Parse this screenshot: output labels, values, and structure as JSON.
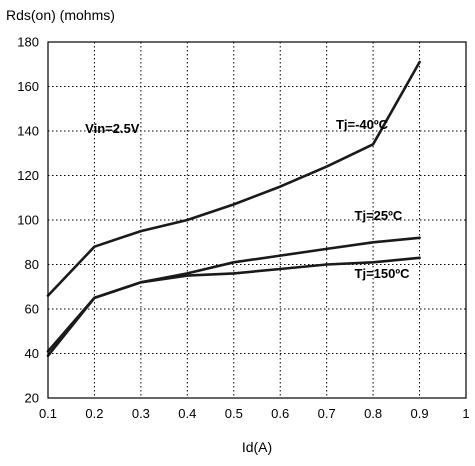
{
  "chart_data": {
    "type": "line",
    "ylabel": "Rds(on) (mohms)",
    "xlabel": "Id(A)",
    "xlim": [
      0.1,
      1.0
    ],
    "ylim": [
      20,
      180
    ],
    "x_ticks": [
      "0.1",
      "0.2",
      "0.3",
      "0.4",
      "0.5",
      "0.6",
      "0.7",
      "0.8",
      "0.9",
      "1"
    ],
    "y_ticks": [
      "20",
      "40",
      "60",
      "80",
      "100",
      "120",
      "140",
      "160",
      "180"
    ],
    "x_tick_values": [
      0.1,
      0.2,
      0.3,
      0.4,
      0.5,
      0.6,
      0.7,
      0.8,
      0.9,
      1.0
    ],
    "y_tick_values": [
      20,
      40,
      60,
      80,
      100,
      120,
      140,
      160,
      180
    ],
    "grid": true,
    "annotations": [
      {
        "text": "Vin=2.5V",
        "x": 0.18,
        "y": 139
      },
      {
        "text": "Tj=-40ºC",
        "x": 0.72,
        "y": 141
      },
      {
        "text": "Tj=25ºC",
        "x": 0.76,
        "y": 100
      },
      {
        "text": "Tj=150ºC",
        "x": 0.76,
        "y": 74
      }
    ],
    "series": [
      {
        "name": "Tj=-40ºC",
        "x": [
          0.1,
          0.2,
          0.3,
          0.4,
          0.5,
          0.6,
          0.7,
          0.8,
          0.9
        ],
        "values": [
          66,
          88,
          95,
          100,
          107,
          115,
          124,
          134,
          171
        ]
      },
      {
        "name": "Tj=25ºC",
        "x": [
          0.1,
          0.2,
          0.3,
          0.4,
          0.5,
          0.6,
          0.7,
          0.8,
          0.9
        ],
        "values": [
          41,
          65,
          72,
          76,
          81,
          84,
          87,
          90,
          92
        ]
      },
      {
        "name": "Tj=150ºC",
        "x": [
          0.1,
          0.2,
          0.3,
          0.4,
          0.5,
          0.6,
          0.7,
          0.8,
          0.9
        ],
        "values": [
          39,
          65,
          72,
          75,
          76,
          78,
          80,
          81,
          83
        ]
      }
    ]
  }
}
